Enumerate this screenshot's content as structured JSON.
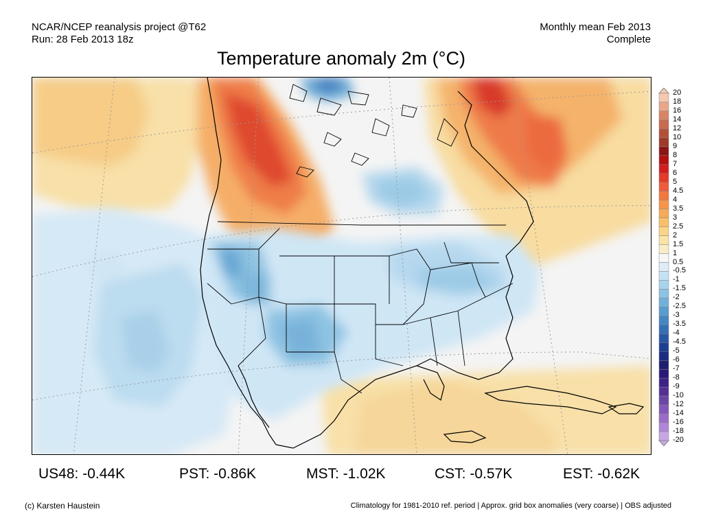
{
  "header": {
    "left_line1": "NCAR/NCEP reanalysis project @T62",
    "left_line2": "Run: 28 Feb 2013 18z",
    "right_line1": "Monthly mean Feb 2013",
    "right_line2": "Complete"
  },
  "title": "Temperature anomaly 2m (°C)",
  "stats": [
    {
      "label": "US48: -0.44K"
    },
    {
      "label": "PST: -0.86K"
    },
    {
      "label": "MST: -1.02K"
    },
    {
      "label": "CST: -0.57K"
    },
    {
      "label": "EST: -0.62K"
    }
  ],
  "footer": {
    "left": "(c) Karsten Haustein",
    "right": "Climatology for 1981-2010 ref. period | Approx. grid box anomalies (very coarse) | OBS adjusted"
  },
  "colorbar": {
    "labels": [
      "20",
      "18",
      "16",
      "14",
      "12",
      "10",
      "9",
      "8",
      "7",
      "6",
      "5",
      "4.5",
      "4",
      "3.5",
      "3",
      "2.5",
      "2",
      "1.5",
      "1",
      "0.5",
      "-0.5",
      "-1",
      "-1.5",
      "-2",
      "-2.5",
      "-3",
      "-3.5",
      "-4",
      "-4.5",
      "-5",
      "-6",
      "-7",
      "-8",
      "-9",
      "-10",
      "-12",
      "-14",
      "-16",
      "-18",
      "-20"
    ],
    "colors": [
      "#f6c8b0",
      "#e9a688",
      "#d98467",
      "#c76a4f",
      "#b25038",
      "#9e3a27",
      "#8c1414",
      "#b40f0f",
      "#d21e1e",
      "#e33a2a",
      "#ef5a3a",
      "#f27840",
      "#f5944a",
      "#f7aa58",
      "#f9c06c",
      "#fad487",
      "#fae3a6",
      "#f8edc8",
      "#f6f6f6",
      "#dcecf8",
      "#c4e2f4",
      "#a8d3ec",
      "#8cc2e3",
      "#72b0da",
      "#5a9ccf",
      "#4686c2",
      "#3670b4",
      "#2858a4",
      "#1e4092",
      "#1c2c80",
      "#1e1e70",
      "#2a1a78",
      "#3c2286",
      "#543094",
      "#6c44a6",
      "#8456b8",
      "#9a6cc8",
      "#b086d8",
      "#c8a6e6"
    ]
  }
}
